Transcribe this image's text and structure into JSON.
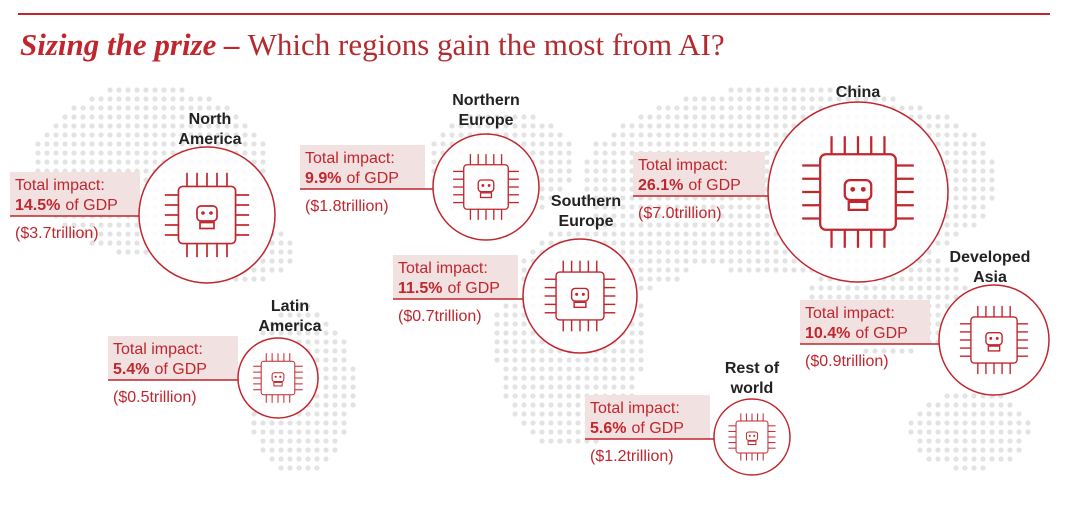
{
  "header": {
    "title_emphasis": "Sizing the prize –",
    "title": "Which regions gain the most from AI?"
  },
  "regions": [
    {
      "name": [
        "North",
        "America"
      ],
      "impact_label": "Total impact:",
      "share": "14.5%",
      "of_gdp": "of GDP",
      "amount": "($3.7trillion)"
    },
    {
      "name": [
        "Northern",
        "Europe"
      ],
      "impact_label": "Total impact:",
      "share": "9.9%",
      "of_gdp": "of GDP",
      "amount": "($1.8trillion)"
    },
    {
      "name": [
        "Southern",
        "Europe"
      ],
      "impact_label": "Total impact:",
      "share": "11.5%",
      "of_gdp": "of GDP",
      "amount": "($0.7trillion)"
    },
    {
      "name": [
        "China"
      ],
      "impact_label": "Total impact:",
      "share": "26.1%",
      "of_gdp": "of GDP",
      "amount": "($7.0trillion)"
    },
    {
      "name": [
        "Developed",
        "Asia"
      ],
      "impact_label": "Total impact:",
      "share": "10.4%",
      "of_gdp": "of GDP",
      "amount": "($0.9trillion)"
    },
    {
      "name": [
        "Latin",
        "America"
      ],
      "impact_label": "Total impact:",
      "share": "5.4%",
      "of_gdp": "of GDP",
      "amount": "($0.5trillion)"
    },
    {
      "name": [
        "Rest of",
        "world"
      ],
      "impact_label": "Total impact:",
      "share": "5.6%",
      "of_gdp": "of GDP",
      "amount": "($1.2trillion)"
    }
  ]
}
